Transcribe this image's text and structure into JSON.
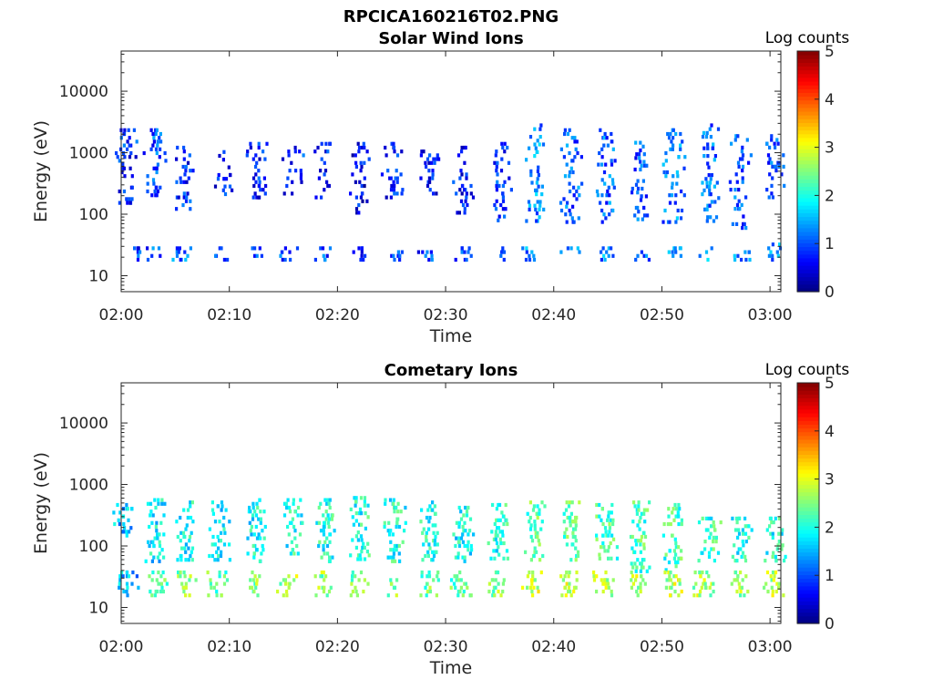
{
  "figure": {
    "title": "RPCICA160216T02.PNG"
  },
  "chart_data": [
    {
      "type": "heatmap",
      "title": "Solar Wind Ions",
      "xlabel": "Time",
      "ylabel": "Energy (eV)",
      "x_ticks": [
        "02:00",
        "02:10",
        "02:20",
        "02:30",
        "02:40",
        "02:50",
        "03:00"
      ],
      "x_range_minutes": [
        0,
        61
      ],
      "y_ticks": [
        "10",
        "100",
        "1000",
        "10000"
      ],
      "y_range_eV": [
        5.5,
        45000
      ],
      "y_scale": "log",
      "colorbar": {
        "label": "Log counts",
        "ticks": [
          "0",
          "1",
          "2",
          "3",
          "4",
          "5"
        ],
        "range": [
          0,
          5
        ],
        "colormap": "jet"
      },
      "bursts": [
        {
          "t": 0.3,
          "e0": 150,
          "e1": 2500,
          "lvl": 0.8
        },
        {
          "t": 1.5,
          "e0": 18,
          "e1": 30,
          "lvl": 0.9
        },
        {
          "t": 3.0,
          "e0": 200,
          "e1": 2500,
          "lvl": 1.0
        },
        {
          "t": 3.0,
          "e0": 18,
          "e1": 30,
          "lvl": 1.0
        },
        {
          "t": 5.8,
          "e0": 120,
          "e1": 1300,
          "lvl": 0.8
        },
        {
          "t": 5.5,
          "e0": 18,
          "e1": 30,
          "lvl": 1.1
        },
        {
          "t": 9.5,
          "e0": 200,
          "e1": 1100,
          "lvl": 0.7
        },
        {
          "t": 9.0,
          "e0": 18,
          "e1": 30,
          "lvl": 0.9
        },
        {
          "t": 12.5,
          "e0": 200,
          "e1": 1500,
          "lvl": 0.7
        },
        {
          "t": 12.3,
          "e0": 18,
          "e1": 30,
          "lvl": 0.9
        },
        {
          "t": 15.8,
          "e0": 200,
          "e1": 1300,
          "lvl": 0.8
        },
        {
          "t": 15.5,
          "e0": 18,
          "e1": 30,
          "lvl": 1.0
        },
        {
          "t": 18.8,
          "e0": 200,
          "e1": 1500,
          "lvl": 0.8
        },
        {
          "t": 18.5,
          "e0": 18,
          "e1": 30,
          "lvl": 1.0
        },
        {
          "t": 22.0,
          "e0": 100,
          "e1": 1500,
          "lvl": 0.6
        },
        {
          "t": 22.0,
          "e0": 18,
          "e1": 30,
          "lvl": 0.9
        },
        {
          "t": 25.0,
          "e0": 200,
          "e1": 1500,
          "lvl": 0.7
        },
        {
          "t": 25.2,
          "e0": 18,
          "e1": 30,
          "lvl": 0.9
        },
        {
          "t": 28.5,
          "e0": 200,
          "e1": 1300,
          "lvl": 0.7
        },
        {
          "t": 28.2,
          "e0": 18,
          "e1": 30,
          "lvl": 0.9
        },
        {
          "t": 31.5,
          "e0": 100,
          "e1": 1300,
          "lvl": 0.7
        },
        {
          "t": 31.5,
          "e0": 18,
          "e1": 30,
          "lvl": 1.0
        },
        {
          "t": 35.0,
          "e0": 80,
          "e1": 1500,
          "lvl": 0.9
        },
        {
          "t": 34.8,
          "e0": 18,
          "e1": 30,
          "lvl": 1.2
        },
        {
          "t": 38.2,
          "e0": 80,
          "e1": 3000,
          "lvl": 1.3
        },
        {
          "t": 38.0,
          "e0": 18,
          "e1": 30,
          "lvl": 1.3
        },
        {
          "t": 41.5,
          "e0": 70,
          "e1": 2500,
          "lvl": 1.1
        },
        {
          "t": 41.5,
          "e0": 18,
          "e1": 30,
          "lvl": 1.4
        },
        {
          "t": 44.8,
          "e0": 80,
          "e1": 2500,
          "lvl": 1.1
        },
        {
          "t": 44.8,
          "e0": 18,
          "e1": 30,
          "lvl": 1.3
        },
        {
          "t": 47.8,
          "e0": 80,
          "e1": 1800,
          "lvl": 1.0
        },
        {
          "t": 47.8,
          "e0": 18,
          "e1": 30,
          "lvl": 1.2
        },
        {
          "t": 51.0,
          "e0": 70,
          "e1": 2500,
          "lvl": 1.2
        },
        {
          "t": 51.0,
          "e0": 18,
          "e1": 30,
          "lvl": 1.3
        },
        {
          "t": 54.2,
          "e0": 80,
          "e1": 3000,
          "lvl": 1.1
        },
        {
          "t": 54.0,
          "e0": 18,
          "e1": 30,
          "lvl": 1.4
        },
        {
          "t": 57.2,
          "e0": 60,
          "e1": 2000,
          "lvl": 1.0
        },
        {
          "t": 57.3,
          "e0": 18,
          "e1": 30,
          "lvl": 1.3
        },
        {
          "t": 60.2,
          "e0": 200,
          "e1": 2000,
          "lvl": 1.0
        },
        {
          "t": 60.2,
          "e0": 18,
          "e1": 40,
          "lvl": 1.3
        }
      ]
    },
    {
      "type": "heatmap",
      "title": "Cometary Ions",
      "xlabel": "Time",
      "ylabel": "Energy (eV)",
      "x_ticks": [
        "02:00",
        "02:10",
        "02:20",
        "02:30",
        "02:40",
        "02:50",
        "03:00"
      ],
      "x_range_minutes": [
        0,
        61
      ],
      "y_ticks": [
        "10",
        "100",
        "1000",
        "10000"
      ],
      "y_range_eV": [
        5.5,
        45000
      ],
      "y_scale": "log",
      "colorbar": {
        "label": "Log counts",
        "ticks": [
          "0",
          "1",
          "2",
          "3",
          "4",
          "5"
        ],
        "range": [
          0,
          5
        ],
        "colormap": "jet"
      },
      "bursts": [
        {
          "t": 0.2,
          "e0": 150,
          "e1": 500,
          "lvl": 1.6
        },
        {
          "t": 0.5,
          "e0": 15,
          "e1": 40,
          "lvl": 1.5
        },
        {
          "t": 3.0,
          "e0": 60,
          "e1": 600,
          "lvl": 1.8
        },
        {
          "t": 3.2,
          "e0": 15,
          "e1": 40,
          "lvl": 2.4
        },
        {
          "t": 5.8,
          "e0": 60,
          "e1": 550,
          "lvl": 1.9
        },
        {
          "t": 5.8,
          "e0": 15,
          "e1": 40,
          "lvl": 2.5
        },
        {
          "t": 9.0,
          "e0": 60,
          "e1": 550,
          "lvl": 1.8
        },
        {
          "t": 8.8,
          "e0": 15,
          "e1": 40,
          "lvl": 2.3
        },
        {
          "t": 12.3,
          "e0": 60,
          "e1": 600,
          "lvl": 1.9
        },
        {
          "t": 12.3,
          "e0": 15,
          "e1": 40,
          "lvl": 2.5
        },
        {
          "t": 15.8,
          "e0": 80,
          "e1": 600,
          "lvl": 2.0
        },
        {
          "t": 15.3,
          "e0": 15,
          "e1": 40,
          "lvl": 2.7
        },
        {
          "t": 18.8,
          "e0": 60,
          "e1": 600,
          "lvl": 2.0
        },
        {
          "t": 18.5,
          "e0": 15,
          "e1": 40,
          "lvl": 2.6
        },
        {
          "t": 22.0,
          "e0": 60,
          "e1": 650,
          "lvl": 2.0
        },
        {
          "t": 21.7,
          "e0": 15,
          "e1": 40,
          "lvl": 2.5
        },
        {
          "t": 25.2,
          "e0": 60,
          "e1": 600,
          "lvl": 2.0
        },
        {
          "t": 25.0,
          "e0": 15,
          "e1": 40,
          "lvl": 2.5
        },
        {
          "t": 28.5,
          "e0": 60,
          "e1": 550,
          "lvl": 2.0
        },
        {
          "t": 28.3,
          "e0": 15,
          "e1": 40,
          "lvl": 2.4
        },
        {
          "t": 31.5,
          "e0": 60,
          "e1": 450,
          "lvl": 1.9
        },
        {
          "t": 31.4,
          "e0": 15,
          "e1": 40,
          "lvl": 2.3
        },
        {
          "t": 34.8,
          "e0": 60,
          "e1": 500,
          "lvl": 2.0
        },
        {
          "t": 34.6,
          "e0": 15,
          "e1": 40,
          "lvl": 2.5
        },
        {
          "t": 38.2,
          "e0": 60,
          "e1": 550,
          "lvl": 2.3
        },
        {
          "t": 38.0,
          "e0": 15,
          "e1": 40,
          "lvl": 2.8
        },
        {
          "t": 41.5,
          "e0": 60,
          "e1": 550,
          "lvl": 2.3
        },
        {
          "t": 41.3,
          "e0": 15,
          "e1": 40,
          "lvl": 2.8
        },
        {
          "t": 44.8,
          "e0": 60,
          "e1": 500,
          "lvl": 2.2
        },
        {
          "t": 44.5,
          "e0": 15,
          "e1": 40,
          "lvl": 2.7
        },
        {
          "t": 47.8,
          "e0": 40,
          "e1": 550,
          "lvl": 2.2
        },
        {
          "t": 47.5,
          "e0": 15,
          "e1": 40,
          "lvl": 2.7
        },
        {
          "t": 51.0,
          "e0": 40,
          "e1": 500,
          "lvl": 2.2
        },
        {
          "t": 50.8,
          "e0": 15,
          "e1": 40,
          "lvl": 2.8
        },
        {
          "t": 54.3,
          "e0": 60,
          "e1": 300,
          "lvl": 2.1
        },
        {
          "t": 53.8,
          "e0": 15,
          "e1": 40,
          "lvl": 2.7
        },
        {
          "t": 57.2,
          "e0": 60,
          "e1": 300,
          "lvl": 2.0
        },
        {
          "t": 57.0,
          "e0": 15,
          "e1": 40,
          "lvl": 2.6
        },
        {
          "t": 60.3,
          "e0": 60,
          "e1": 300,
          "lvl": 2.0
        },
        {
          "t": 60.2,
          "e0": 15,
          "e1": 40,
          "lvl": 2.7
        }
      ]
    }
  ]
}
